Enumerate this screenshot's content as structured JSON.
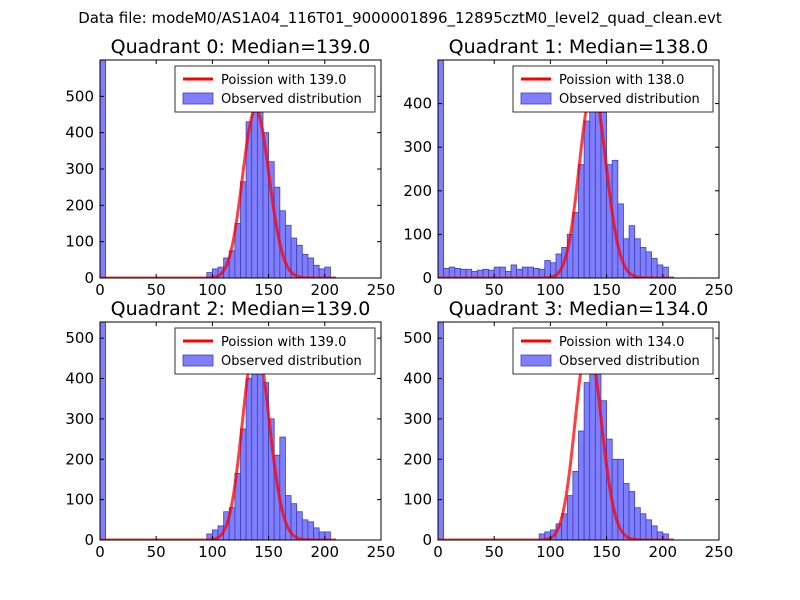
{
  "figure": {
    "suptitle": "Data file: modeM0/AS1A04_116T01_9000001896_12895cztM0_level2_quad_clean.evt"
  },
  "style": {
    "bar_fill": "#7f7ffe",
    "bar_edge": "#3f3fb0",
    "line_color": "#ff0000",
    "axes_color": "#000000"
  },
  "chart_data": [
    {
      "type": "bar",
      "title": "Quadrant 0: Median=139.0",
      "xlim": [
        0,
        250
      ],
      "ylim": [
        0,
        600
      ],
      "xticks": [
        0,
        50,
        100,
        150,
        200,
        250
      ],
      "yticks": [
        0,
        100,
        200,
        300,
        400,
        500
      ],
      "bin_width": 5,
      "legend": [
        "Poission with 139.0",
        "Observed distribution"
      ],
      "legend_loc": "upper right",
      "bins": [
        [
          0,
          600
        ],
        [
          95,
          15
        ],
        [
          100,
          25
        ],
        [
          105,
          30
        ],
        [
          110,
          55
        ],
        [
          115,
          75
        ],
        [
          120,
          150
        ],
        [
          125,
          265
        ],
        [
          130,
          430
        ],
        [
          135,
          480
        ],
        [
          140,
          490
        ],
        [
          145,
          400
        ],
        [
          150,
          320
        ],
        [
          155,
          250
        ],
        [
          160,
          185
        ],
        [
          165,
          145
        ],
        [
          170,
          110
        ],
        [
          175,
          90
        ],
        [
          180,
          65
        ],
        [
          185,
          55
        ],
        [
          190,
          35
        ],
        [
          195,
          25
        ],
        [
          200,
          30
        ]
      ],
      "poisson_mean": 139.0,
      "poisson_scale": 13700
    },
    {
      "type": "bar",
      "title": "Quadrant 1: Median=138.0",
      "xlim": [
        0,
        250
      ],
      "ylim": [
        0,
        500
      ],
      "xticks": [
        0,
        50,
        100,
        150,
        200,
        250
      ],
      "yticks": [
        0,
        100,
        200,
        300,
        400
      ],
      "bin_width": 5,
      "legend": [
        "Poission with 138.0",
        "Observed distribution"
      ],
      "legend_loc": "upper right",
      "bins": [
        [
          0,
          500
        ],
        [
          5,
          22
        ],
        [
          10,
          25
        ],
        [
          15,
          22
        ],
        [
          20,
          20
        ],
        [
          25,
          20
        ],
        [
          30,
          15
        ],
        [
          35,
          18
        ],
        [
          40,
          20
        ],
        [
          45,
          18
        ],
        [
          50,
          25
        ],
        [
          55,
          25
        ],
        [
          60,
          15
        ],
        [
          65,
          30
        ],
        [
          70,
          20
        ],
        [
          75,
          25
        ],
        [
          80,
          25
        ],
        [
          85,
          22
        ],
        [
          90,
          20
        ],
        [
          95,
          40
        ],
        [
          100,
          35
        ],
        [
          105,
          55
        ],
        [
          110,
          70
        ],
        [
          115,
          100
        ],
        [
          120,
          150
        ],
        [
          125,
          260
        ],
        [
          130,
          360
        ],
        [
          135,
          440
        ],
        [
          140,
          400
        ],
        [
          145,
          380
        ],
        [
          150,
          260
        ],
        [
          155,
          270
        ],
        [
          160,
          170
        ],
        [
          165,
          90
        ],
        [
          170,
          120
        ],
        [
          175,
          90
        ],
        [
          180,
          70
        ],
        [
          185,
          60
        ],
        [
          190,
          45
        ],
        [
          195,
          30
        ],
        [
          200,
          25
        ]
      ],
      "poisson_mean": 138.0,
      "poisson_scale": 12800
    },
    {
      "type": "bar",
      "title": "Quadrant 2: Median=139.0",
      "xlim": [
        0,
        250
      ],
      "ylim": [
        0,
        540
      ],
      "xticks": [
        0,
        50,
        100,
        150,
        200,
        250
      ],
      "yticks": [
        0,
        100,
        200,
        300,
        400,
        500
      ],
      "bin_width": 5,
      "legend": [
        "Poission with 139.0",
        "Observed distribution"
      ],
      "legend_loc": "upper right",
      "bins": [
        [
          0,
          540
        ],
        [
          95,
          15
        ],
        [
          100,
          25
        ],
        [
          105,
          35
        ],
        [
          110,
          70
        ],
        [
          115,
          80
        ],
        [
          120,
          165
        ],
        [
          125,
          275
        ],
        [
          130,
          400
        ],
        [
          135,
          440
        ],
        [
          140,
          515
        ],
        [
          145,
          390
        ],
        [
          150,
          300
        ],
        [
          155,
          210
        ],
        [
          160,
          255
        ],
        [
          165,
          110
        ],
        [
          170,
          90
        ],
        [
          175,
          70
        ],
        [
          180,
          50
        ],
        [
          185,
          45
        ],
        [
          190,
          30
        ],
        [
          195,
          20
        ],
        [
          200,
          20
        ]
      ],
      "poisson_mean": 139.0,
      "poisson_scale": 14500
    },
    {
      "type": "bar",
      "title": "Quadrant 3: Median=134.0",
      "xlim": [
        0,
        250
      ],
      "ylim": [
        0,
        540
      ],
      "xticks": [
        0,
        50,
        100,
        150,
        200,
        250
      ],
      "yticks": [
        0,
        100,
        200,
        300,
        400,
        500
      ],
      "bin_width": 5,
      "legend": [
        "Poission with 134.0",
        "Observed distribution"
      ],
      "legend_loc": "upper right",
      "bins": [
        [
          0,
          540
        ],
        [
          90,
          15
        ],
        [
          95,
          20
        ],
        [
          100,
          25
        ],
        [
          105,
          40
        ],
        [
          110,
          65
        ],
        [
          115,
          110
        ],
        [
          120,
          170
        ],
        [
          125,
          270
        ],
        [
          130,
          390
        ],
        [
          135,
          510
        ],
        [
          140,
          470
        ],
        [
          145,
          345
        ],
        [
          150,
          250
        ],
        [
          155,
          200
        ],
        [
          160,
          200
        ],
        [
          165,
          140
        ],
        [
          170,
          120
        ],
        [
          175,
          80
        ],
        [
          180,
          65
        ],
        [
          185,
          50
        ],
        [
          190,
          35
        ],
        [
          195,
          20
        ],
        [
          200,
          15
        ]
      ],
      "poisson_mean": 134.0,
      "poisson_scale": 14200
    }
  ]
}
